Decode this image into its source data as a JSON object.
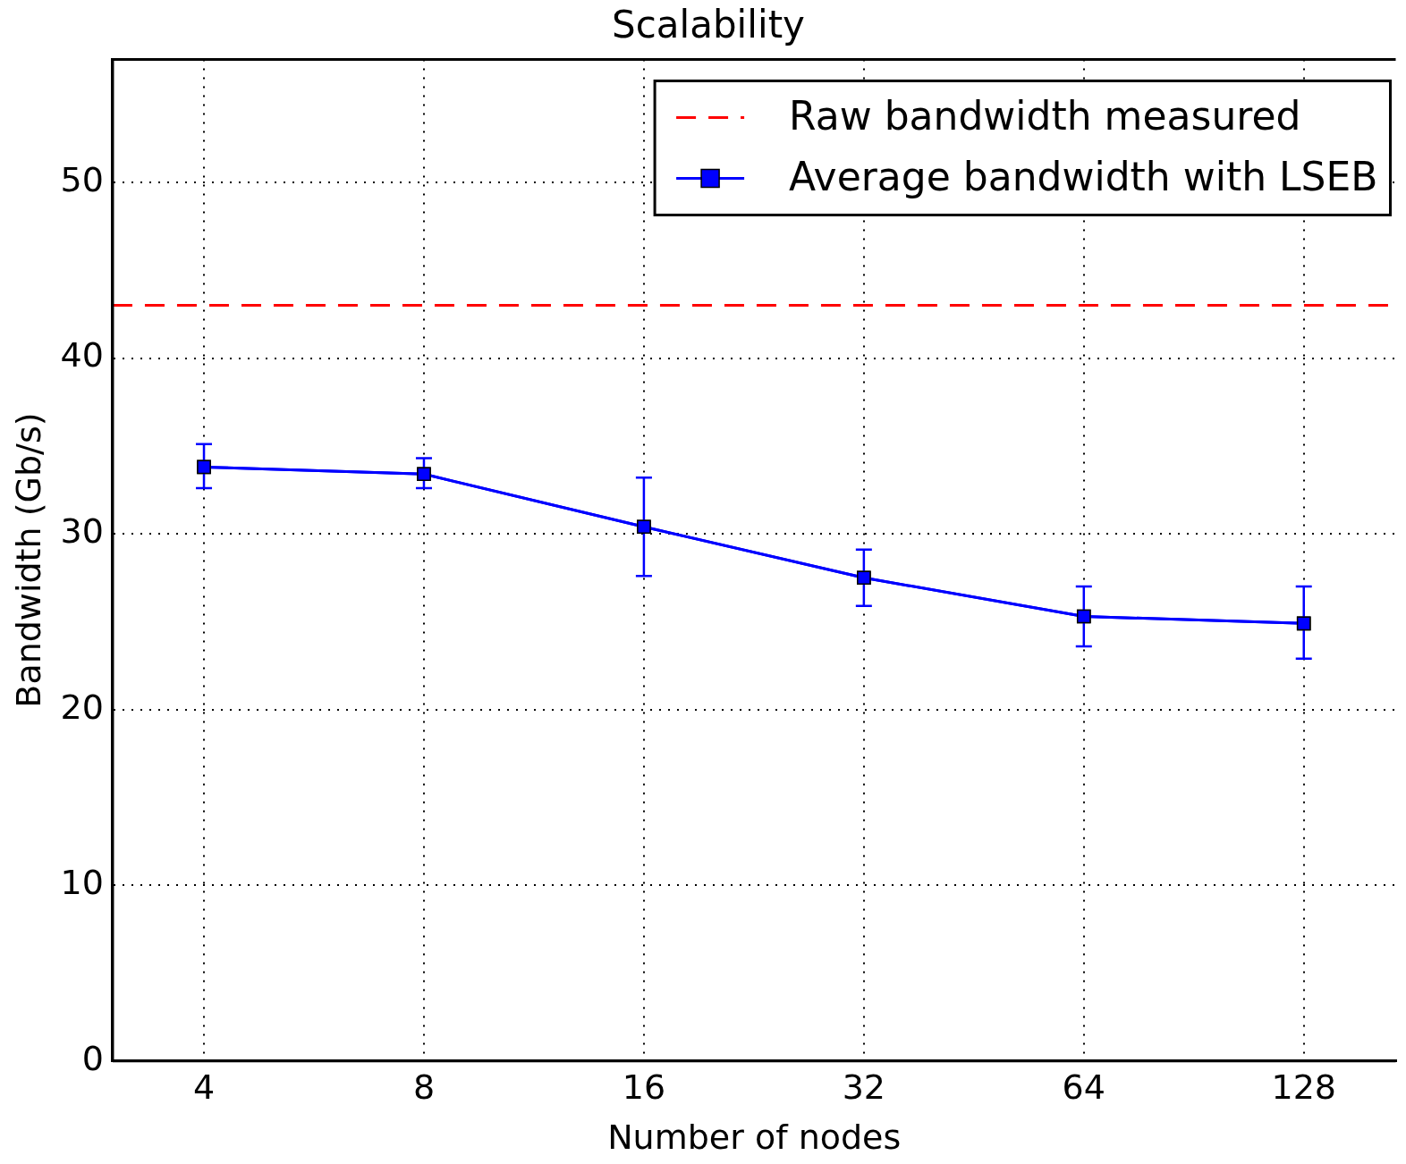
{
  "chart_data": {
    "type": "line",
    "title": "Scalability",
    "xlabel": "Number of nodes",
    "ylabel": "Bandwidth (Gb/s)",
    "x": [
      4,
      8,
      16,
      32,
      64,
      128
    ],
    "series": [
      {
        "name": "Average bandwidth with LSEB",
        "color": "#0000ff",
        "values": [
          33.8,
          33.4,
          30.4,
          27.5,
          25.3,
          24.9
        ],
        "errors": [
          [
            32.6,
            35.1
          ],
          [
            32.6,
            34.3
          ],
          [
            27.6,
            33.2
          ],
          [
            25.9,
            29.1
          ],
          [
            23.6,
            27.0
          ],
          [
            22.9,
            27.0
          ]
        ]
      }
    ],
    "ref_lines": [
      {
        "axis": "y",
        "value": 43,
        "label": "Raw bandwidth measured",
        "color": "#ff0000",
        "line_style": "dashed"
      }
    ],
    "log": "x",
    "xlim": [
      3,
      171
    ],
    "xticks": [
      4,
      8,
      16,
      32,
      64,
      128
    ],
    "ylim": [
      0,
      57
    ],
    "yticks": [
      0,
      10,
      20,
      30,
      40,
      50
    ],
    "grid": true,
    "legend": "top right",
    "marker": "square",
    "line_style": "solid"
  }
}
